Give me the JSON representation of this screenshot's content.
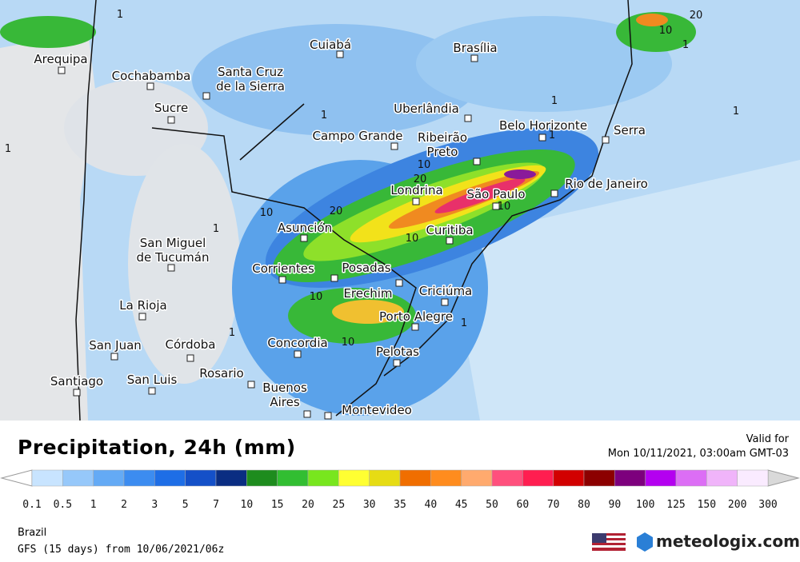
{
  "cities": [
    {
      "lines": [
        "Arequipa"
      ]
    },
    {
      "lines": [
        "Cochabamba"
      ]
    },
    {
      "lines": [
        "Santa Cruz",
        "de la Sierra"
      ]
    },
    {
      "lines": [
        "Sucre"
      ]
    },
    {
      "lines": [
        "Cuiabá"
      ]
    },
    {
      "lines": [
        "Brasília"
      ]
    },
    {
      "lines": [
        "Uberlândia"
      ]
    },
    {
      "lines": [
        "Campo Grande"
      ]
    },
    {
      "lines": [
        "Ribeirão",
        "Preto"
      ]
    },
    {
      "lines": [
        "Belo Horizonte"
      ]
    },
    {
      "lines": [
        "Serra"
      ]
    },
    {
      "lines": [
        "Rio de Janeiro"
      ]
    },
    {
      "lines": [
        "São Paulo"
      ]
    },
    {
      "lines": [
        "Londrina"
      ]
    },
    {
      "lines": [
        "Curitiba"
      ]
    },
    {
      "lines": [
        "Asunción"
      ]
    },
    {
      "lines": [
        "San Miguel",
        "de Tucumán"
      ]
    },
    {
      "lines": [
        "Corrientes"
      ]
    },
    {
      "lines": [
        "Posadas"
      ]
    },
    {
      "lines": [
        "Erechim"
      ]
    },
    {
      "lines": [
        "Criciúma"
      ]
    },
    {
      "lines": [
        "La Rioja"
      ]
    },
    {
      "lines": [
        "Porto Alegre"
      ]
    },
    {
      "lines": [
        "Concordia"
      ]
    },
    {
      "lines": [
        "Córdoba"
      ]
    },
    {
      "lines": [
        "San Juan"
      ]
    },
    {
      "lines": [
        "Pelotas"
      ]
    },
    {
      "lines": [
        "Santiago"
      ]
    },
    {
      "lines": [
        "San Luis"
      ]
    },
    {
      "lines": [
        "Rosario"
      ]
    },
    {
      "lines": [
        "Buenos",
        "Aires"
      ]
    },
    {
      "lines": [
        "Montevideo"
      ]
    }
  ],
  "contour_labels": [
    "1",
    "1",
    "10",
    "20",
    "1",
    "1",
    "1",
    "10",
    "20",
    "10",
    "20",
    "10",
    "10",
    "10",
    "1",
    "1",
    "10",
    "1",
    "1",
    "1"
  ],
  "legend": {
    "title": "Precipitation, 24h (mm)",
    "valid_label": "Valid for",
    "valid_time": "Mon 10/11/2021, 03:00am GMT-03",
    "values": [
      0.1,
      0.5,
      1,
      2,
      3,
      5,
      7,
      10,
      15,
      20,
      25,
      30,
      35,
      40,
      45,
      50,
      60,
      70,
      80,
      90,
      100,
      125,
      150,
      200,
      300
    ],
    "colors": [
      "#c8e4ff",
      "#96c8fa",
      "#64aaf5",
      "#3c8cf0",
      "#1e6ee6",
      "#1450c8",
      "#0a2d82",
      "#1e8c1e",
      "#32be32",
      "#78e61e",
      "#ffff32",
      "#e6dc14",
      "#f06e00",
      "#ff8c1e",
      "#ffaa6e",
      "#ff507d",
      "#ff1e50",
      "#d20000",
      "#8c0000",
      "#7d007d",
      "#b400f0",
      "#dc6ef5",
      "#f0b4fa",
      "#faebff"
    ],
    "max_color": "#d9d9d9"
  },
  "footer": {
    "region": "Brazil",
    "model": "GFS (15 days) from 10/06/2021/06z",
    "logo": "meteologix.com"
  }
}
